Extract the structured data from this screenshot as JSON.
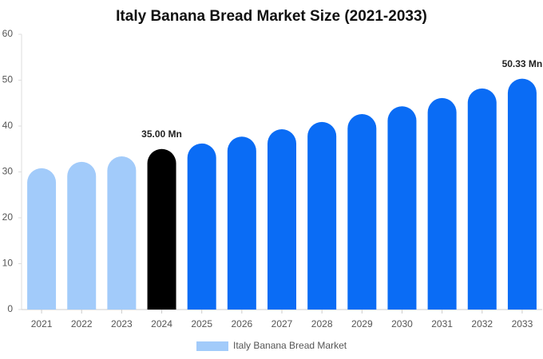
{
  "chart_data": {
    "type": "bar",
    "title": "Italy Banana Bread Market Size (2021-2033)",
    "categories": [
      "2021",
      "2022",
      "2023",
      "2024",
      "2025",
      "2026",
      "2027",
      "2028",
      "2029",
      "2030",
      "2031",
      "2032",
      "2033"
    ],
    "series": [
      {
        "name": "Italy Banana Bread Market",
        "color": "#a2cbfa",
        "values": [
          30.8,
          32.2,
          33.4,
          35.0,
          36.2,
          37.7,
          39.3,
          40.9,
          42.6,
          44.3,
          46.1,
          48.2,
          50.33
        ],
        "value_labels": [
          null,
          null,
          null,
          "35.00 Mn",
          null,
          null,
          null,
          null,
          null,
          null,
          null,
          null,
          "50.33 Mn"
        ],
        "bar_colors": [
          "#a2cbfa",
          "#a2cbfa",
          "#a2cbfa",
          "#000000",
          "#0a6cf5",
          "#0a6cf5",
          "#0a6cf5",
          "#0a6cf5",
          "#0a6cf5",
          "#0a6cf5",
          "#0a6cf5",
          "#0a6cf5",
          "#0a6cf5"
        ]
      }
    ],
    "ylim": [
      0,
      60
    ],
    "yticks": [
      0,
      10,
      20,
      30,
      40,
      50,
      60
    ],
    "grid": false,
    "legend": "bottom"
  }
}
